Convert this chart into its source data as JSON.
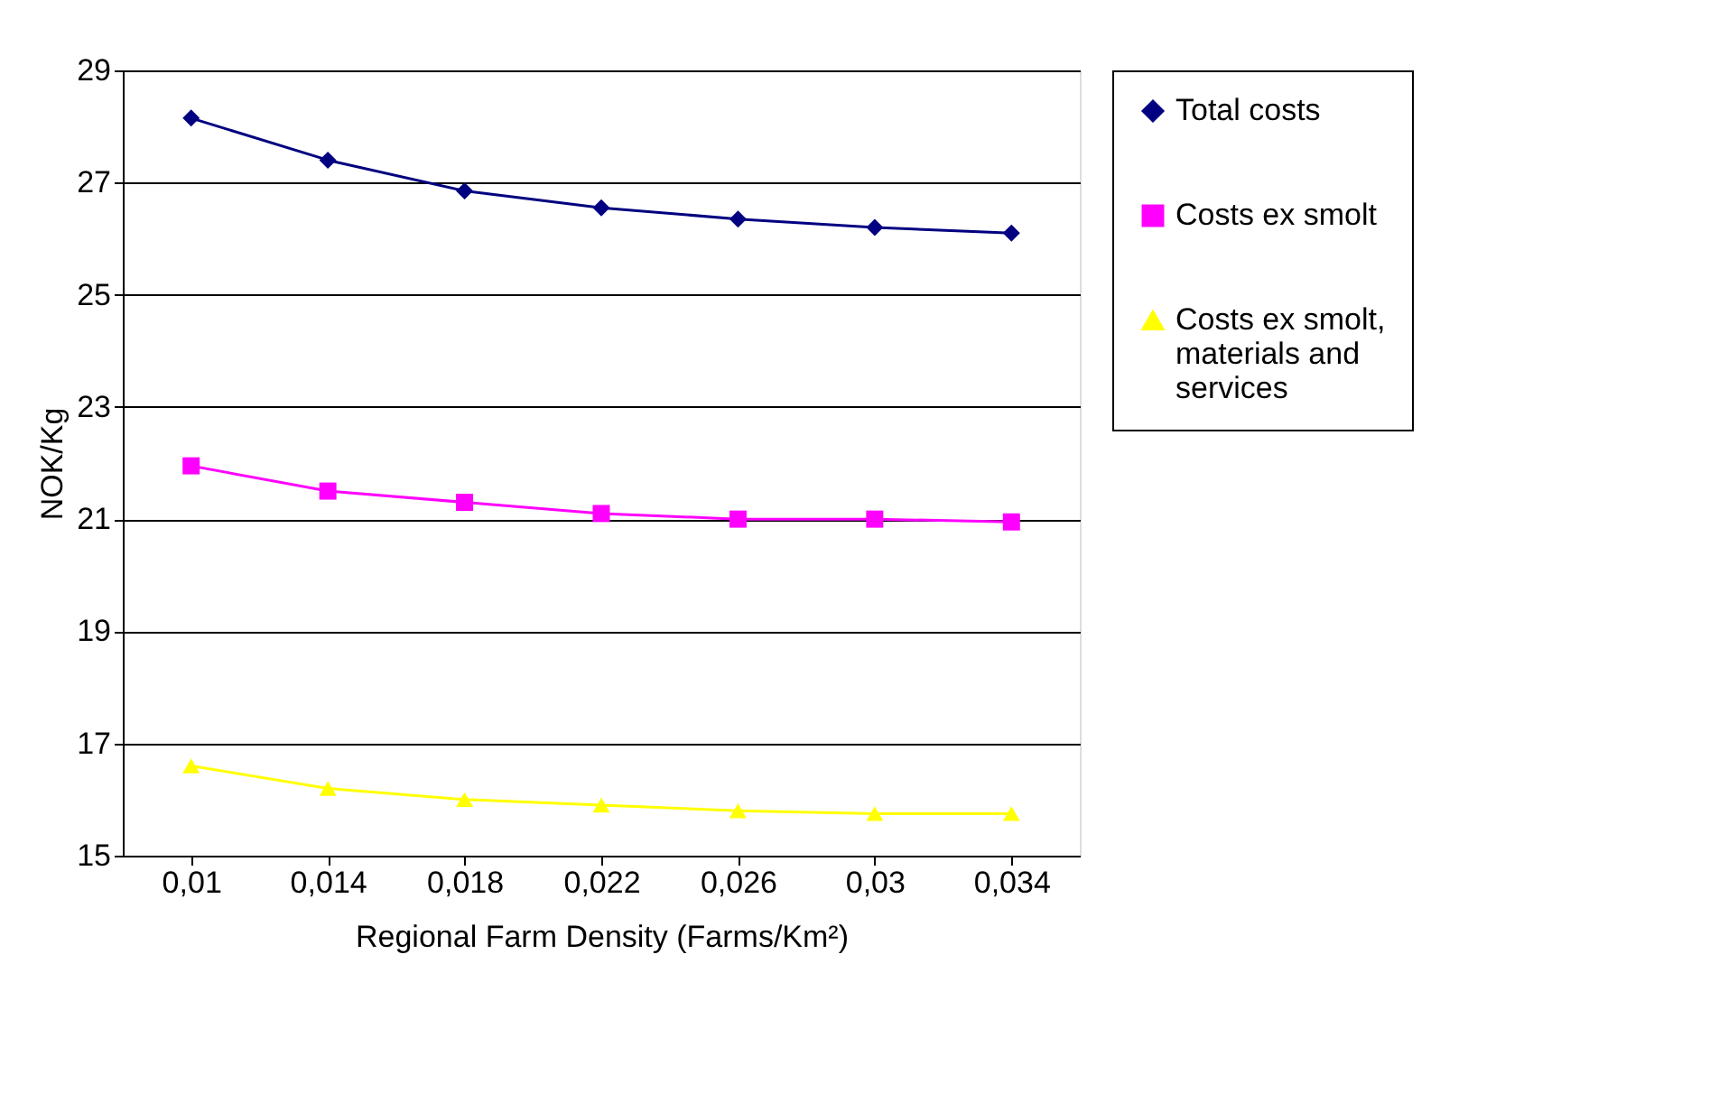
{
  "chart_data": {
    "type": "line",
    "xlabel": "Regional Farm Density (Farms/Km²)",
    "ylabel": "NOK/Kg",
    "categories": [
      "0,01",
      "0,014",
      "0,018",
      "0,022",
      "0,026",
      "0,03",
      "0,034"
    ],
    "series": [
      {
        "name": "Total costs",
        "color": "#000080",
        "marker": "diamond",
        "values": [
          28.15,
          27.4,
          26.85,
          26.55,
          26.35,
          26.2,
          26.1
        ]
      },
      {
        "name": "Costs ex smolt",
        "color": "#ff00ff",
        "marker": "square",
        "values": [
          21.95,
          21.5,
          21.3,
          21.1,
          21.0,
          21.0,
          20.95
        ]
      },
      {
        "name": "Costs ex smolt, materials and services",
        "color": "#ffff00",
        "marker": "triangle",
        "values": [
          16.6,
          16.2,
          16.0,
          15.9,
          15.8,
          15.75,
          15.75
        ]
      }
    ],
    "ylim": [
      15,
      29
    ],
    "yticks": [
      15,
      17,
      19,
      21,
      23,
      25,
      27,
      29
    ],
    "grid": "y",
    "legend": "right",
    "line_style": "solid"
  }
}
